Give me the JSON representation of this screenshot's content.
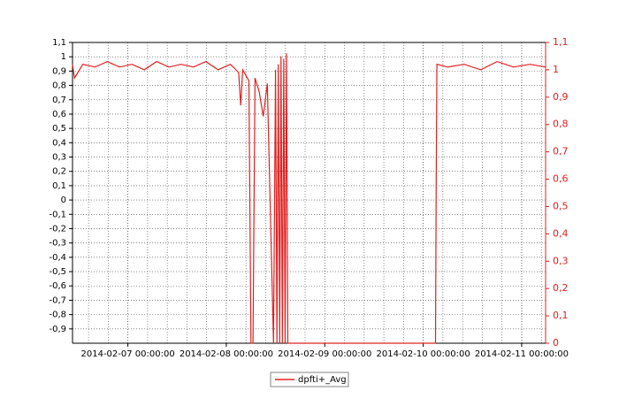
{
  "chart_data": {
    "type": "line",
    "x": [
      "2014-02-06 10:30:00",
      "2014-02-06 11:00:00",
      "2014-02-06 13:00:00",
      "2014-02-06 16:00:00",
      "2014-02-06 19:00:00",
      "2014-02-06 22:00:00",
      "2014-02-07 01:00:00",
      "2014-02-07 04:00:00",
      "2014-02-07 07:00:00",
      "2014-02-07 10:00:00",
      "2014-02-07 13:00:00",
      "2014-02-07 16:00:00",
      "2014-02-07 19:00:00",
      "2014-02-07 22:00:00",
      "2014-02-08 01:00:00",
      "2014-02-08 03:00:00",
      "2014-02-08 03:30:00",
      "2014-02-08 04:00:00",
      "2014-02-08 05:30:00",
      "2014-02-08 06:00:00",
      "2014-02-08 06:30:00",
      "2014-02-08 07:00:00",
      "2014-02-08 08:00:00",
      "2014-02-08 09:00:00",
      "2014-02-08 10:00:00",
      "2014-02-08 11:30:00",
      "2014-02-08 12:00:00",
      "2014-02-08 12:20:00",
      "2014-02-08 12:40:00",
      "2014-02-08 13:00:00",
      "2014-02-08 13:20:00",
      "2014-02-08 13:40:00",
      "2014-02-08 14:00:00",
      "2014-02-08 14:20:00",
      "2014-02-08 14:40:00",
      "2014-02-08 15:00:00",
      "2014-02-10 03:00:00",
      "2014-02-10 03:10:00",
      "2014-02-10 03:20:00",
      "2014-02-10 06:00:00",
      "2014-02-10 10:00:00",
      "2014-02-10 14:00:00",
      "2014-02-10 18:00:00",
      "2014-02-10 22:00:00",
      "2014-02-11 02:00:00",
      "2014-02-11 05:50:00"
    ],
    "series": [
      {
        "name": "dpfti+_Avg",
        "color": "#e02020",
        "axis": "y2",
        "values": [
          1.02,
          0.97,
          1.02,
          1.01,
          1.03,
          1.01,
          1.02,
          1.0,
          1.03,
          1.01,
          1.02,
          1.01,
          1.03,
          1.0,
          1.02,
          0.99,
          0.87,
          1.0,
          0.96,
          0,
          0,
          0.97,
          0.92,
          0.83,
          0.95,
          0,
          1.0,
          0,
          1.02,
          0,
          1.05,
          0,
          1.04,
          0,
          1.06,
          0,
          0,
          0.6,
          1.02,
          1.01,
          1.02,
          1.0,
          1.03,
          1.01,
          1.02,
          1.01
        ]
      }
    ],
    "xlim": [
      "2014-02-06 10:30:00",
      "2014-02-11 05:50:00"
    ],
    "xticks": [
      "2014-02-07 00:00:00",
      "2014-02-08 00:00:00",
      "2014-02-09 00:00:00",
      "2014-02-10 00:00:00",
      "2014-02-11 00:00:00"
    ],
    "ylim": [
      -1,
      1.1
    ],
    "yticks": [
      {
        "value": 1.1,
        "label": "1,1"
      },
      1,
      {
        "value": 0.9,
        "label": "0,9"
      },
      {
        "value": 0.8,
        "label": "0,8"
      },
      {
        "value": 0.7,
        "label": "0,7"
      },
      {
        "value": 0.6,
        "label": "0,6"
      },
      {
        "value": 0.5,
        "label": "0,5"
      },
      {
        "value": 0.4,
        "label": "0,4"
      },
      {
        "value": 0.3,
        "label": "0,3"
      },
      {
        "value": 0.2,
        "label": "0,2"
      },
      {
        "value": 0.1,
        "label": "0,1"
      },
      0,
      {
        "value": -0.1,
        "label": "-0,1"
      },
      {
        "value": -0.2,
        "label": "-0,2"
      },
      {
        "value": -0.3,
        "label": "-0,3"
      },
      {
        "value": -0.4,
        "label": "-0,4"
      },
      {
        "value": -0.5,
        "label": "-0,5"
      },
      {
        "value": -0.6,
        "label": "-0,6"
      },
      {
        "value": -0.7,
        "label": "-0,7"
      },
      {
        "value": -0.8,
        "label": "-0,8"
      },
      {
        "value": -0.9,
        "label": "-0,9"
      }
    ],
    "y2lim": [
      0,
      1.1
    ],
    "y2ticks": [
      {
        "value": 1.1,
        "label": "1,1"
      },
      1,
      {
        "value": 0.9,
        "label": "0,9"
      },
      {
        "value": 0.8,
        "label": "0,8"
      },
      {
        "value": 0.7,
        "label": "0,7"
      },
      {
        "value": 0.6,
        "label": "0,6"
      },
      {
        "value": 0.5,
        "label": "0,5"
      },
      {
        "value": 0.4,
        "label": "0,4"
      },
      {
        "value": 0.3,
        "label": "0,3"
      },
      {
        "value": 0.2,
        "label": "0,2"
      },
      {
        "value": 0.1,
        "label": "0,1"
      },
      0
    ],
    "grid": true,
    "legend": "bottom"
  }
}
